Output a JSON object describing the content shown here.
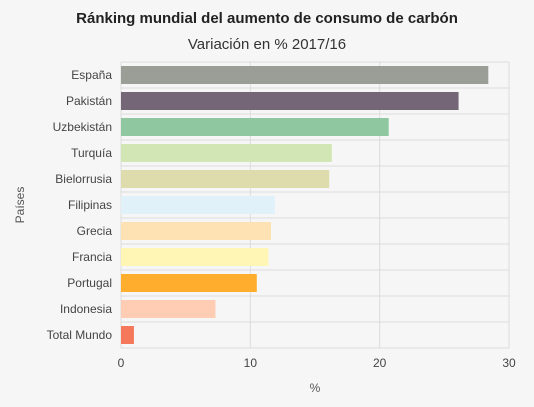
{
  "chart_data": {
    "type": "bar",
    "orientation": "horizontal",
    "title": "Ránking mundial del aumento de consumo de carbón",
    "subtitle": "Variación en % 2017/16",
    "xlabel": "%",
    "ylabel": "Países",
    "xlim": [
      0,
      30
    ],
    "xticks": [
      0,
      10,
      20,
      30
    ],
    "grid": true,
    "categories": [
      "España",
      "Pakistán",
      "Uzbekistán",
      "Turquía",
      "Bielorrusia",
      "Filipinas",
      "Grecia",
      "Francia",
      "Portugal",
      "Indonesia",
      "Total Mundo"
    ],
    "values": [
      28.4,
      26.1,
      20.7,
      16.3,
      16.1,
      11.9,
      11.6,
      11.4,
      10.5,
      7.3,
      1.0
    ],
    "colors": [
      "#9a9e97",
      "#746676",
      "#8fc8a0",
      "#d1e6b4",
      "#dedbad",
      "#e0f1fa",
      "#ffe2b4",
      "#fff6b6",
      "#ffad2c",
      "#ffccb4",
      "#f5785a"
    ]
  }
}
